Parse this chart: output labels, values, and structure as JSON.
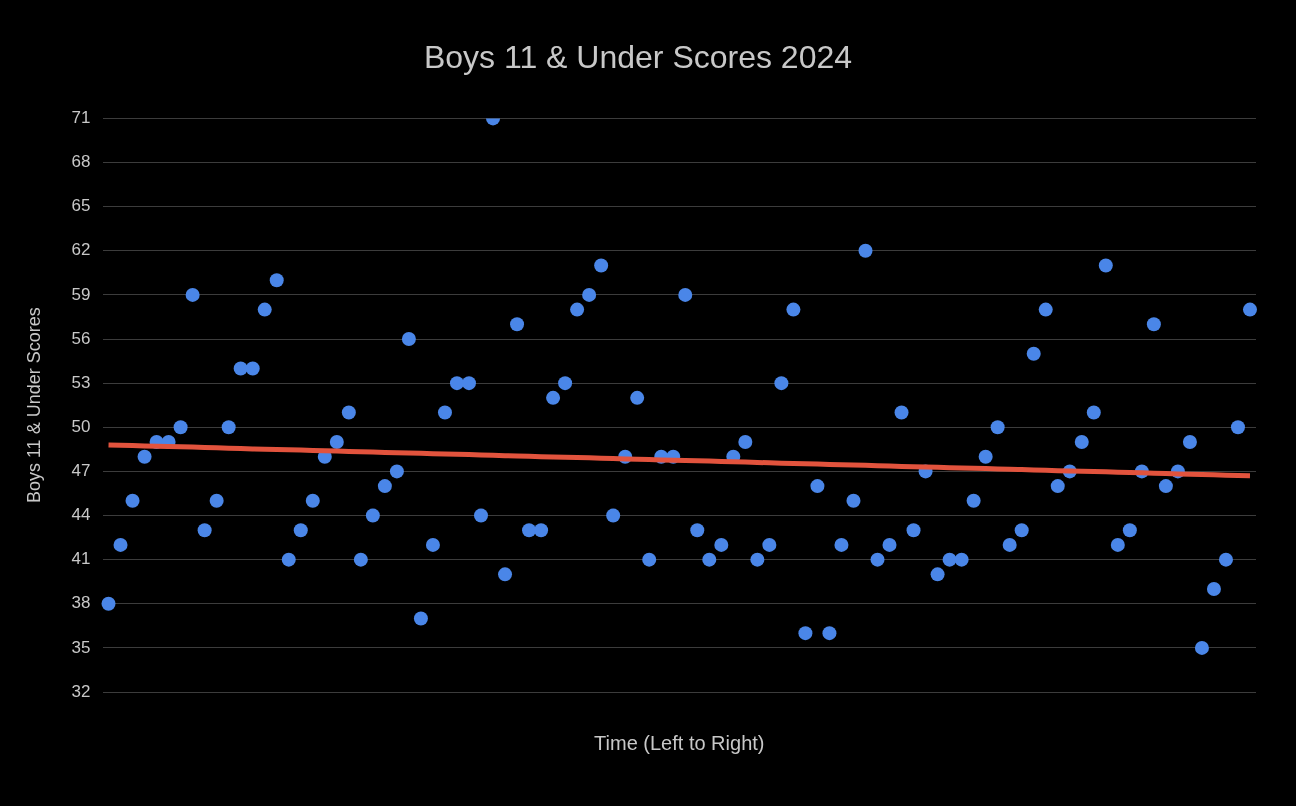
{
  "chart_data": {
    "type": "scatter",
    "title": "Boys 11 & Under Scores 2024",
    "xlabel": "Time (Left to Right)",
    "ylabel": "Boys 11 & Under Scores",
    "categories": [
      null,
      null,
      null,
      null,
      null,
      null,
      null,
      null,
      null,
      null,
      null,
      null,
      null,
      null,
      null,
      null,
      null,
      null,
      null,
      null,
      null,
      null,
      null,
      null,
      null,
      null,
      null,
      null,
      null,
      null,
      null,
      null,
      null,
      null,
      null,
      null,
      null,
      null,
      null,
      null,
      null,
      null,
      null,
      null,
      null,
      null,
      null,
      null,
      null,
      null,
      null,
      null,
      null,
      null,
      null,
      null,
      null,
      null,
      null,
      null,
      null,
      null,
      null,
      null,
      null,
      null,
      null,
      null,
      null,
      null,
      null,
      null,
      null,
      null,
      null,
      null,
      null,
      null,
      null,
      null,
      null,
      null,
      null,
      null,
      null,
      null,
      null,
      null,
      null,
      null,
      null,
      null,
      null,
      null,
      null,
      null
    ],
    "series": [
      {
        "color": "#4a86e8",
        "values": [
          38,
          42,
          45,
          48,
          49,
          49,
          50,
          59,
          43,
          45,
          50,
          54,
          54,
          58,
          60,
          41,
          43,
          45,
          48,
          49,
          51,
          41,
          44,
          46,
          47,
          56,
          37,
          42,
          51,
          53,
          53,
          44,
          71,
          40,
          57,
          43,
          43,
          52,
          53,
          58,
          59,
          61,
          44,
          48,
          52,
          41,
          48,
          48,
          59,
          43,
          41,
          42,
          48,
          49,
          41,
          42,
          53,
          58,
          36,
          46,
          36,
          42,
          45,
          62,
          41,
          42,
          51,
          43,
          47,
          40,
          41,
          41,
          45,
          48,
          50,
          42,
          43,
          55,
          58,
          46,
          47,
          49,
          51,
          61,
          42,
          43,
          47,
          57,
          46,
          47,
          49,
          35,
          39,
          41,
          50,
          58
        ]
      },
      {
        "type": "line",
        "marker": "none",
        "color": "#e2533d",
        "values": [
          48.8,
          48.78,
          48.76,
          48.73,
          48.71,
          48.69,
          48.67,
          48.65,
          48.62,
          48.6,
          48.58,
          48.56,
          48.53,
          48.51,
          48.49,
          48.47,
          48.45,
          48.42,
          48.4,
          48.38,
          48.36,
          48.34,
          48.31,
          48.29,
          48.27,
          48.25,
          48.23,
          48.2,
          48.18,
          48.16,
          48.14,
          48.11,
          48.09,
          48.07,
          48.05,
          48.03,
          48.0,
          47.98,
          47.96,
          47.94,
          47.92,
          47.89,
          47.87,
          47.85,
          47.83,
          47.81,
          47.78,
          47.76,
          47.74,
          47.72,
          47.7,
          47.67,
          47.65,
          47.63,
          47.61,
          47.58,
          47.56,
          47.54,
          47.52,
          47.5,
          47.47,
          47.45,
          47.43,
          47.41,
          47.39,
          47.36,
          47.34,
          47.32,
          47.3,
          47.28,
          47.25,
          47.23,
          47.21,
          47.19,
          47.16,
          47.14,
          47.12,
          47.1,
          47.08,
          47.05,
          47.03,
          47.01,
          46.99,
          46.97,
          46.94,
          46.92,
          46.9,
          46.88,
          46.86,
          46.83,
          46.81,
          46.79,
          46.77,
          46.74,
          46.72,
          46.7
        ]
      }
    ],
    "ylim": [
      32,
      71
    ],
    "yticks": [
      32,
      35,
      38,
      41,
      44,
      47,
      50,
      53,
      56,
      59,
      62,
      65,
      68,
      71
    ],
    "grid": "y",
    "tick_labels": "y",
    "marker": "circle",
    "legend": false
  }
}
